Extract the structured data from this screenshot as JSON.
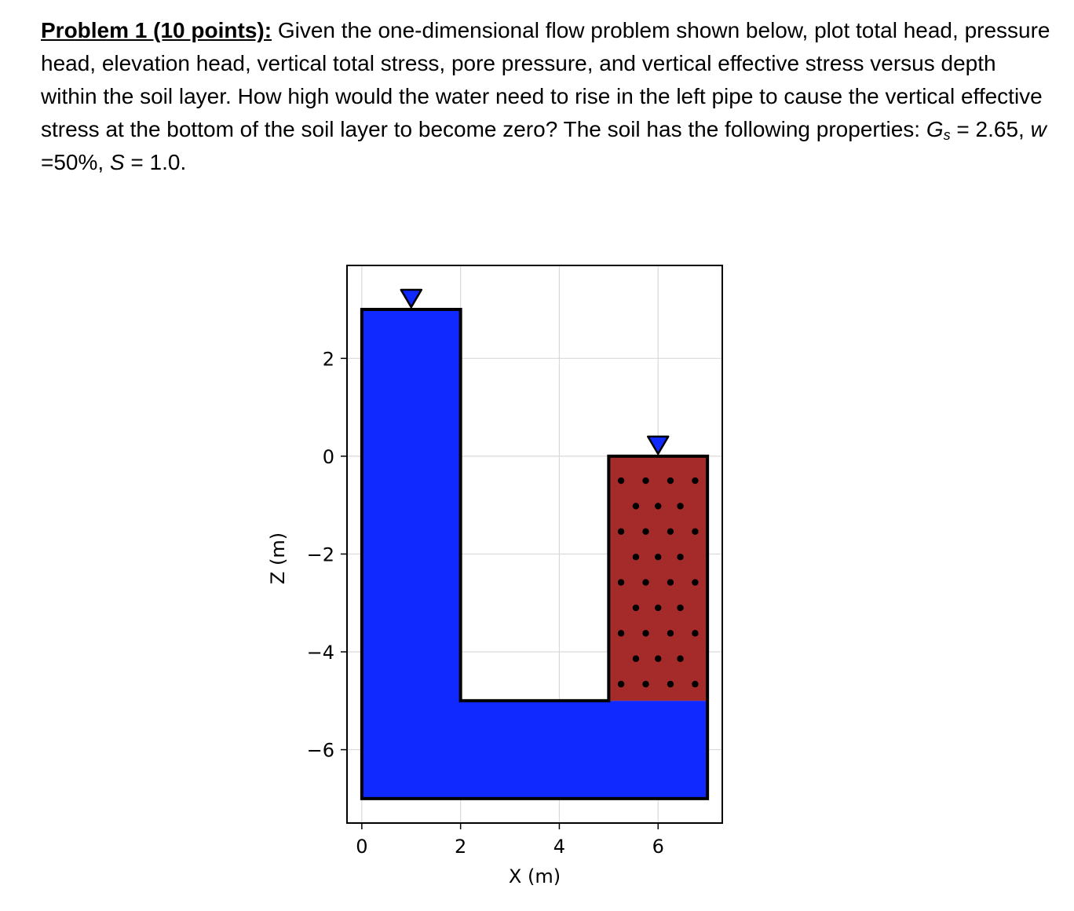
{
  "problem": {
    "label": "Problem 1 (10 points):",
    "text_intro": " Given the one-dimensional flow problem shown below, plot total head, pressure head, elevation head, vertical total stress, pore pressure, and vertical effective stress versus depth within the soil layer. How high would the water need to rise in the left pipe to cause the vertical effective stress at the bottom of the soil layer to become zero? The soil has the following properties: ",
    "gs_symbol": "G",
    "gs_sub": "s",
    "gs_value": " = 2.65, ",
    "w_symbol": "w",
    "w_value": " =50%, ",
    "s_symbol": "S",
    "s_value": " = 1.0."
  },
  "chart_data": {
    "type": "diagram",
    "xlabel": "X (m)",
    "ylabel": "Z (m)",
    "xlim": [
      -0.3,
      7.3
    ],
    "ylim": [
      -7.5,
      3.9
    ],
    "xticks": [
      0,
      2,
      4,
      6
    ],
    "yticks": [
      2,
      0,
      -2,
      -4,
      -6
    ],
    "grid": true,
    "colors": {
      "water": "#1029ff",
      "soil": "#a52a2a",
      "outline": "#000000",
      "grid": "#d9d9d9"
    },
    "water_body": [
      [
        0,
        3
      ],
      [
        2,
        3
      ],
      [
        2,
        -5
      ],
      [
        7,
        -5
      ],
      [
        7,
        -7
      ],
      [
        0,
        -7
      ]
    ],
    "soil_layer": {
      "x": [
        5,
        7
      ],
      "z": [
        -5,
        0
      ]
    },
    "pipe_outline": [
      [
        0,
        3
      ],
      [
        2,
        3
      ],
      [
        2,
        -5
      ],
      [
        5,
        -5
      ],
      [
        5,
        0
      ],
      [
        7,
        0
      ],
      [
        7,
        -7
      ],
      [
        0,
        -7
      ]
    ],
    "water_levels": [
      {
        "x": 1,
        "z": 3
      },
      {
        "x": 6,
        "z": 0
      }
    ]
  }
}
